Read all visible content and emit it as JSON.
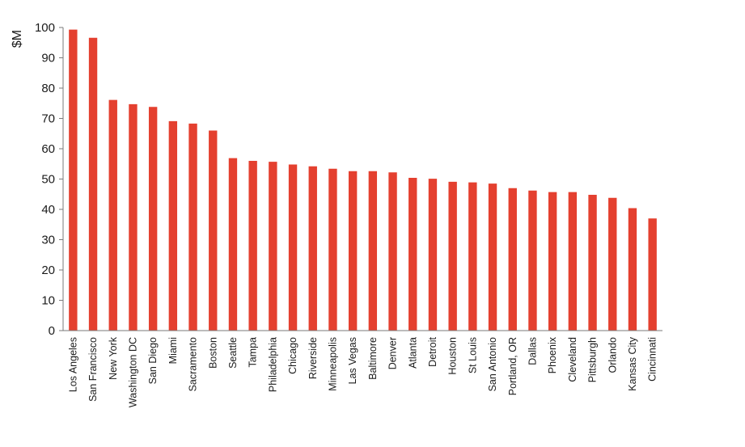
{
  "chart_data": {
    "type": "bar",
    "ylabel": "$M",
    "xlabel": "",
    "ylim": [
      0,
      100
    ],
    "y_ticks": [
      0,
      10,
      20,
      30,
      40,
      50,
      60,
      70,
      80,
      90,
      100
    ],
    "grid": false,
    "legend": "none",
    "bar_color": "#e4402f",
    "categories": [
      "Los Angeles",
      "San Francisco",
      "New York",
      "Washington DC",
      "San Diego",
      "Miami",
      "Sacramento",
      "Boston",
      "Seattle",
      "Tampa",
      "Philadelphia",
      "Chicago",
      "Riverside",
      "Minneapolis",
      "Las Vegas",
      "Baltimore",
      "Denver",
      "Atlanta",
      "Detroit",
      "Houston",
      "St Louis",
      "San Antonio",
      "Portland, OR",
      "Dallas",
      "Phoenix",
      "Cleveland",
      "Pittsburgh",
      "Orlando",
      "Kansas City",
      "Cincinnati"
    ],
    "values": [
      99.3,
      96.6,
      76.1,
      74.7,
      73.8,
      69.1,
      68.3,
      66.0,
      56.9,
      56.0,
      55.7,
      54.8,
      54.2,
      53.4,
      52.6,
      52.6,
      52.2,
      50.4,
      50.1,
      49.1,
      48.9,
      48.5,
      47.0,
      46.2,
      45.7,
      45.7,
      44.8,
      43.8,
      40.4,
      37.0
    ]
  }
}
